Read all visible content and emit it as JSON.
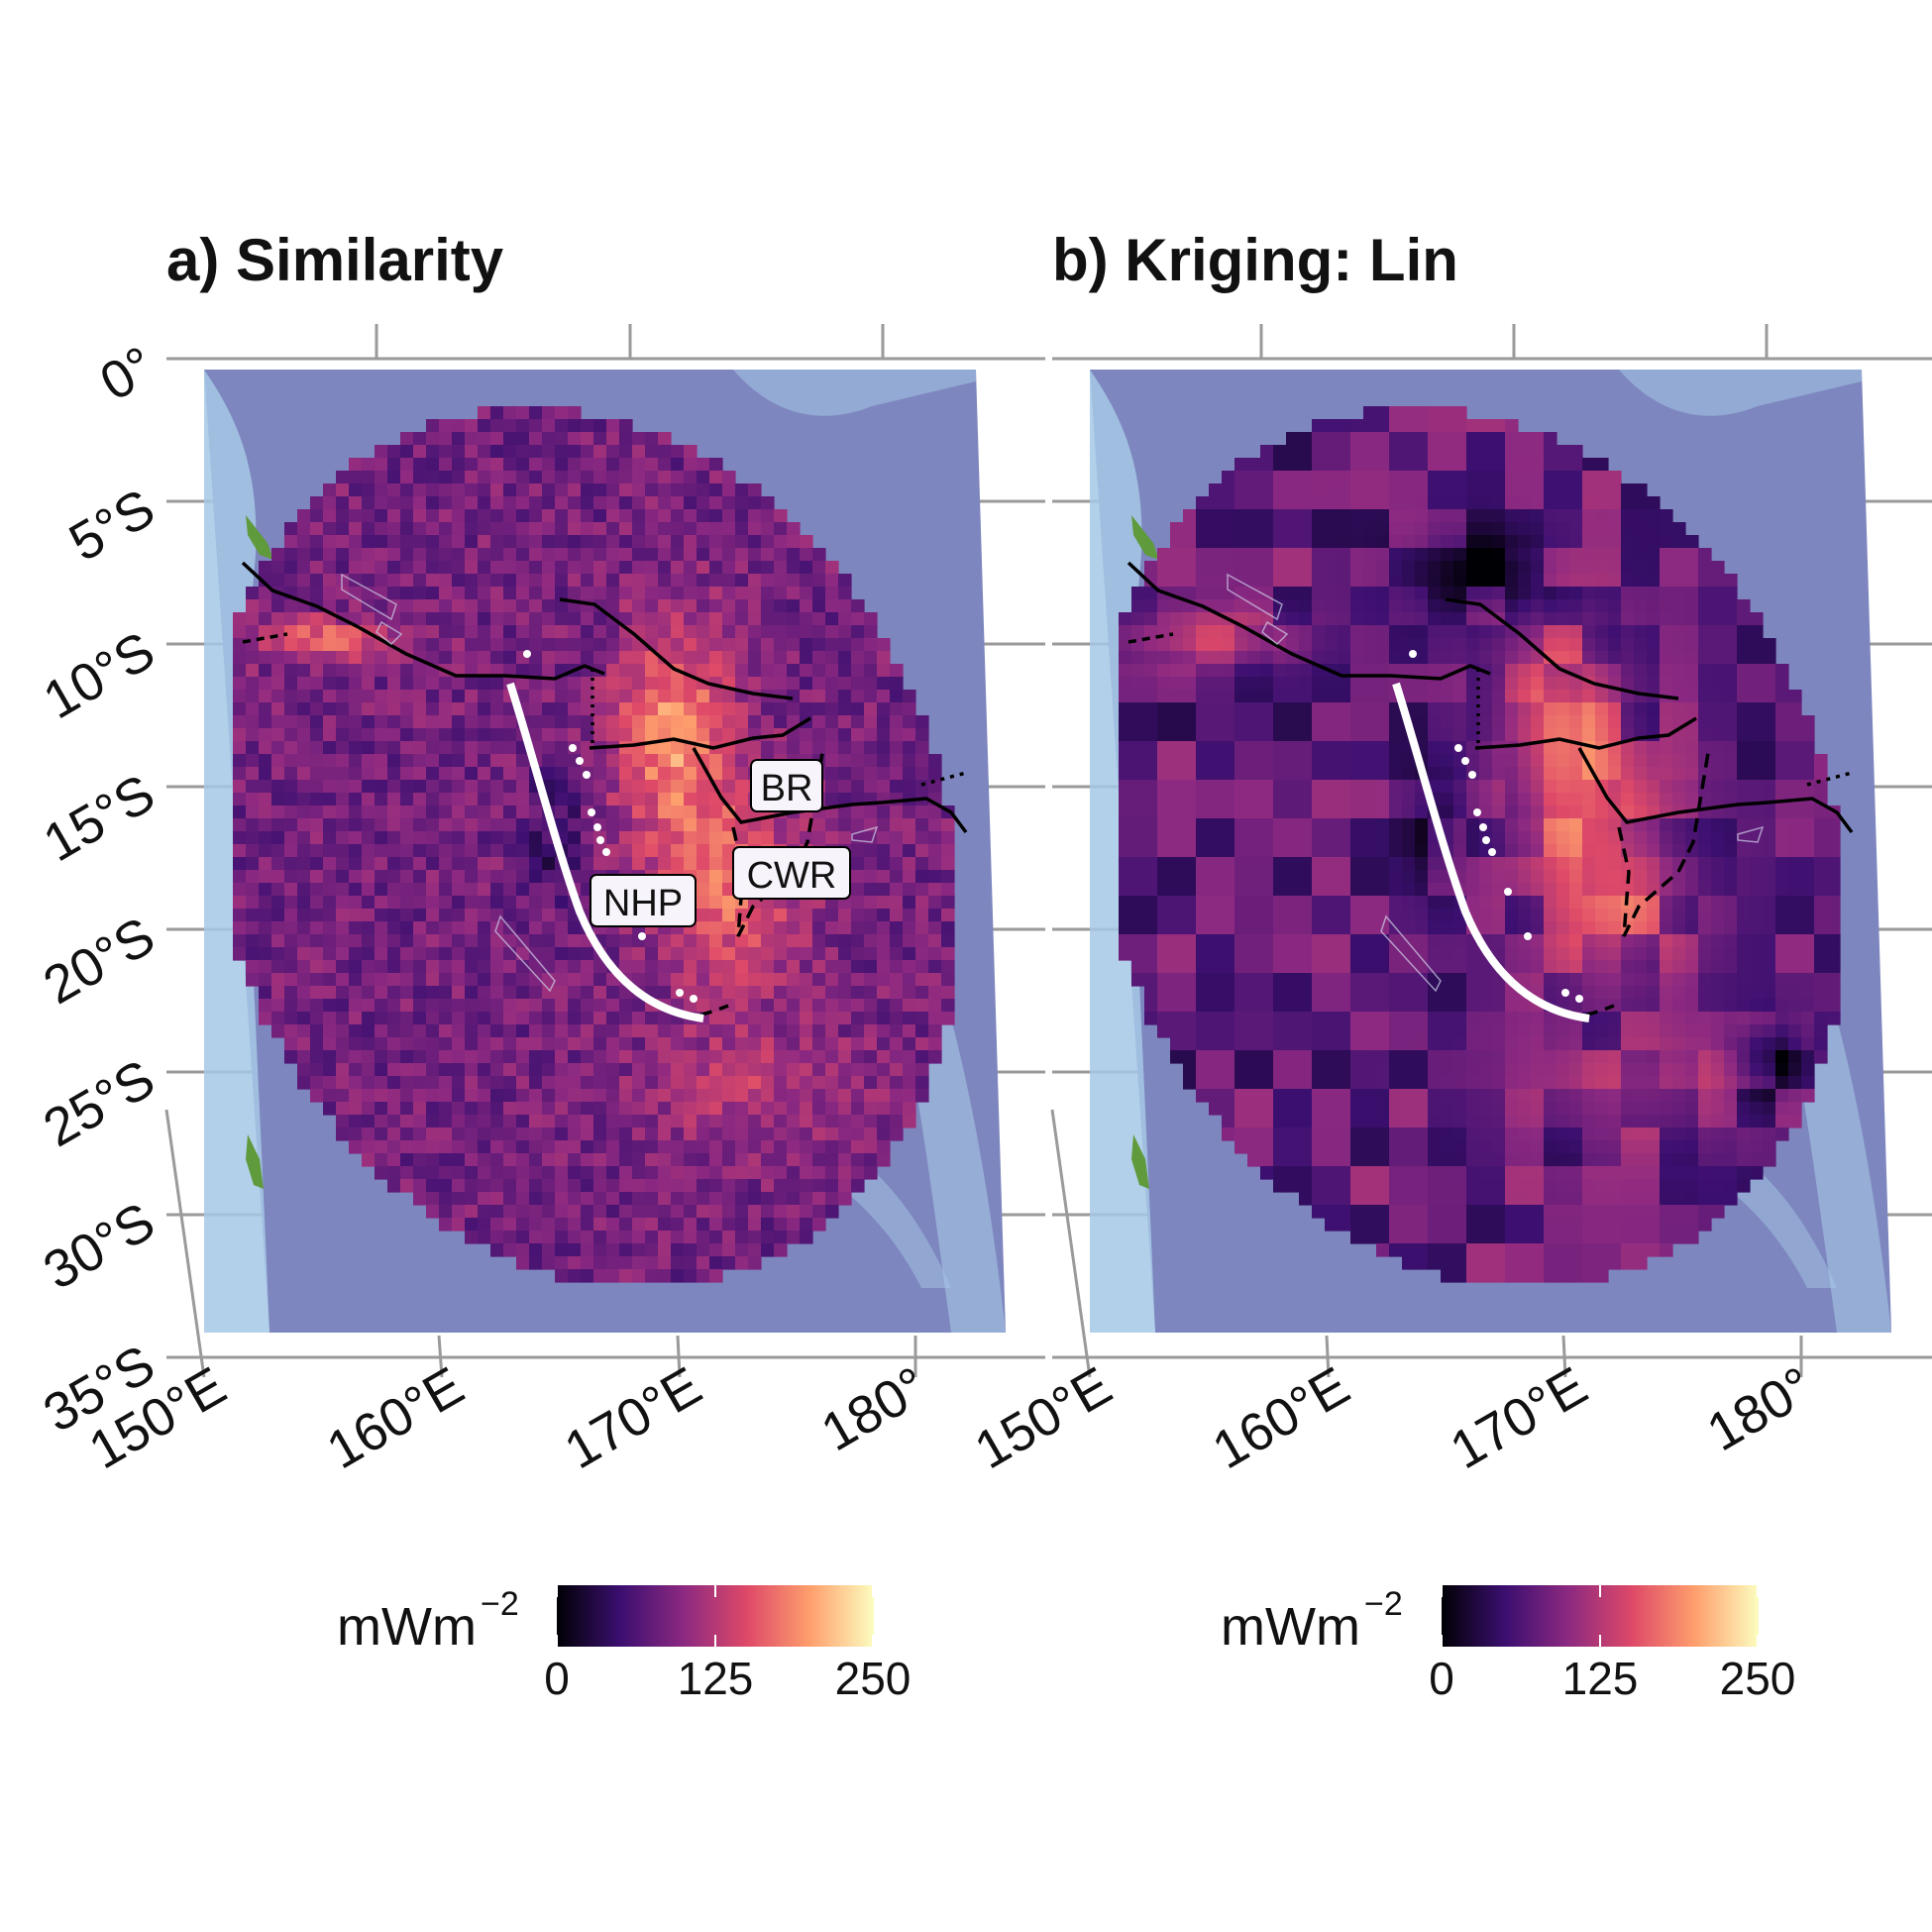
{
  "figure": {
    "colors": {
      "ocean_deep": "#7d86be",
      "ocean_shallow": "#a6c8e6",
      "land": "#5f9a3c",
      "gridline": "#9a9a9a",
      "plate_boundary": "#000000",
      "trench": "#ffffff"
    },
    "colorscale": [
      "#000004",
      "#3b0f70",
      "#8c2981",
      "#de4968",
      "#fe9f6d",
      "#fcfdbf"
    ],
    "axes": {
      "lat_ticks": [
        "0°",
        "5°S",
        "10°S",
        "15°S",
        "20°S",
        "25°S",
        "30°S",
        "35°S"
      ],
      "lon_ticks": [
        "150°E",
        "160°E",
        "170°E",
        "180°"
      ]
    },
    "panels": [
      {
        "id": "a",
        "title": "a) Similarity",
        "field_style": "noisy",
        "annotations": [
          "BR",
          "CWR",
          "NHP"
        ],
        "legend": {
          "title": "mWm",
          "superscript": "−2",
          "min": "0",
          "mid": "125",
          "max": "250"
        }
      },
      {
        "id": "b",
        "title": "b) Kriging: Lin",
        "field_style": "smooth",
        "annotations": [],
        "legend": {
          "title": "mWm",
          "superscript": "−2",
          "min": "0",
          "mid": "125",
          "max": "250"
        }
      }
    ]
  }
}
